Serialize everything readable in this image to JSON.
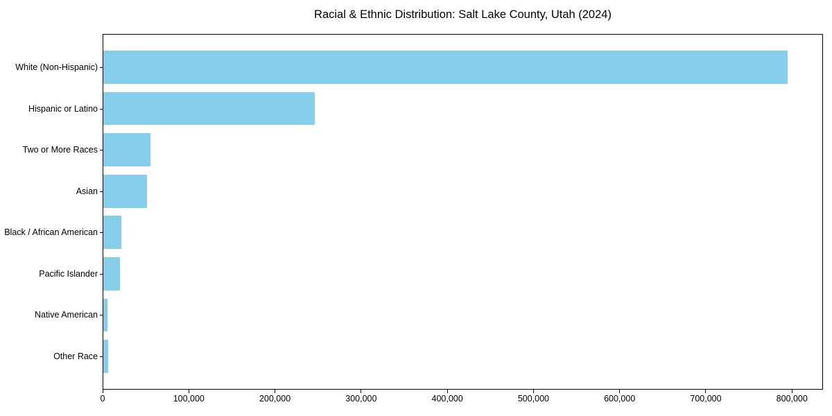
{
  "chart_data": {
    "type": "bar",
    "orientation": "horizontal",
    "title": "Racial & Ethnic Distribution: Salt Lake County, Utah (2024)",
    "categories": [
      "White (Non-Hispanic)",
      "Hispanic or Latino",
      "Two or More Races",
      "Asian",
      "Black / African American",
      "Pacific Islander",
      "Native American",
      "Other Race"
    ],
    "values": [
      796000,
      246000,
      55000,
      51000,
      21000,
      19000,
      5000,
      6000
    ],
    "xlabel": "",
    "ylabel": "",
    "xlim": [
      0,
      836000
    ],
    "xtick_values": [
      0,
      100000,
      200000,
      300000,
      400000,
      500000,
      600000,
      700000,
      800000
    ],
    "xtick_labels": [
      "0",
      "100,000",
      "200,000",
      "300,000",
      "400,000",
      "500,000",
      "600,000",
      "700,000",
      "800,000"
    ],
    "grid": false,
    "legend_position": "none",
    "colors": {
      "bar": "#87CEEB",
      "axis": "#000000",
      "text": "#000000",
      "background": "#ffffff"
    }
  }
}
